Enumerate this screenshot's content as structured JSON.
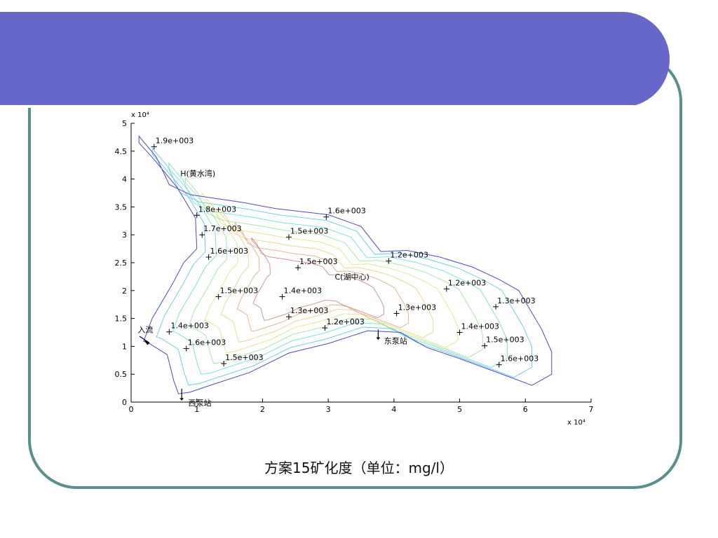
{
  "chart_data": {
    "type": "contour",
    "x_tick_labels": [
      "0",
      "1",
      "2",
      "3",
      "4",
      "5",
      "6",
      "7"
    ],
    "y_tick_labels": [
      "0",
      "0.5",
      "1",
      "1.5",
      "2",
      "2.5",
      "3",
      "3.5",
      "4",
      "4.5",
      "5"
    ],
    "x_exponent_label": "x 10⁴",
    "y_exponent_label": "x 10⁴",
    "xlim": [
      0,
      70000
    ],
    "ylim": [
      0,
      50000
    ],
    "grid": false,
    "boundary": [
      [
        1200,
        47700
      ],
      [
        3800,
        44000
      ],
      [
        5800,
        39000
      ],
      [
        9000,
        37200
      ],
      [
        13000,
        36500
      ],
      [
        17000,
        35800
      ],
      [
        22000,
        34700
      ],
      [
        30000,
        33600
      ],
      [
        35000,
        31500
      ],
      [
        38000,
        27000
      ],
      [
        42000,
        27200
      ],
      [
        47000,
        26000
      ],
      [
        52000,
        24200
      ],
      [
        56000,
        22000
      ],
      [
        59000,
        20000
      ],
      [
        60500,
        17000
      ],
      [
        62500,
        13000
      ],
      [
        64000,
        9000
      ],
      [
        64000,
        5000
      ],
      [
        61000,
        3000
      ],
      [
        56000,
        5200
      ],
      [
        50000,
        7800
      ],
      [
        45000,
        9800
      ],
      [
        41000,
        12500
      ],
      [
        36000,
        12800
      ],
      [
        30000,
        10500
      ],
      [
        24000,
        8800
      ],
      [
        18000,
        5300
      ],
      [
        12000,
        3000
      ],
      [
        9000,
        1800
      ],
      [
        7200,
        1500
      ],
      [
        6500,
        3800
      ],
      [
        5500,
        8500
      ],
      [
        2800,
        10500
      ],
      [
        1900,
        10900
      ],
      [
        3200,
        15000
      ],
      [
        6200,
        21000
      ],
      [
        8000,
        25000
      ],
      [
        10000,
        27500
      ],
      [
        9800,
        33000
      ],
      [
        7000,
        38500
      ],
      [
        3500,
        43500
      ],
      [
        1200,
        46500
      ]
    ],
    "annotations": [
      {
        "x": 3500,
        "y": 45800,
        "label": "1.9e+003"
      },
      {
        "x": 10000,
        "y": 33500,
        "label": "1.8e+003"
      },
      {
        "x": 10800,
        "y": 30000,
        "label": "1.7e+003"
      },
      {
        "x": 11800,
        "y": 26000,
        "label": "1.6e+003"
      },
      {
        "x": 29700,
        "y": 33200,
        "label": "1.6e+003"
      },
      {
        "x": 24000,
        "y": 29600,
        "label": "1.5e+003"
      },
      {
        "x": 25400,
        "y": 24100,
        "label": "1.5e+003"
      },
      {
        "x": 39200,
        "y": 25300,
        "label": "1.2e+003"
      },
      {
        "x": 13300,
        "y": 18900,
        "label": "1.5e+003"
      },
      {
        "x": 23000,
        "y": 18900,
        "label": "1.4e+003"
      },
      {
        "x": 48000,
        "y": 20300,
        "label": "1.2e+003"
      },
      {
        "x": 55500,
        "y": 17100,
        "label": "1.3e+003"
      },
      {
        "x": 24000,
        "y": 15300,
        "label": "1.3e+003"
      },
      {
        "x": 40400,
        "y": 15900,
        "label": "1.3e+003"
      },
      {
        "x": 5800,
        "y": 12600,
        "label": "1.4e+003"
      },
      {
        "x": 29500,
        "y": 13300,
        "label": "1.2e+003"
      },
      {
        "x": 50000,
        "y": 12500,
        "label": "1.4e+003"
      },
      {
        "x": 8400,
        "y": 9600,
        "label": "1.6e+003"
      },
      {
        "x": 53800,
        "y": 10100,
        "label": "1.5e+003"
      },
      {
        "x": 14100,
        "y": 6900,
        "label": "1.5e+003"
      },
      {
        "x": 56000,
        "y": 6700,
        "label": "1.6e+003"
      }
    ],
    "place_labels": [
      {
        "x": 7500,
        "y": 40500,
        "label": "H(黄水湾)"
      },
      {
        "x": 31000,
        "y": 22000,
        "label": "C(湖中心)"
      },
      {
        "x": 1000,
        "y": 12500,
        "label": "入流"
      },
      {
        "x": 38500,
        "y": 10500,
        "label": "东泵站"
      },
      {
        "x": 8700,
        "y": -600,
        "label": "西泵站"
      }
    ]
  },
  "caption": "方案15矿化度（单位：mg/l）",
  "colors": {
    "title_bar": "#6667c9",
    "frame": "#5a8f8c"
  }
}
